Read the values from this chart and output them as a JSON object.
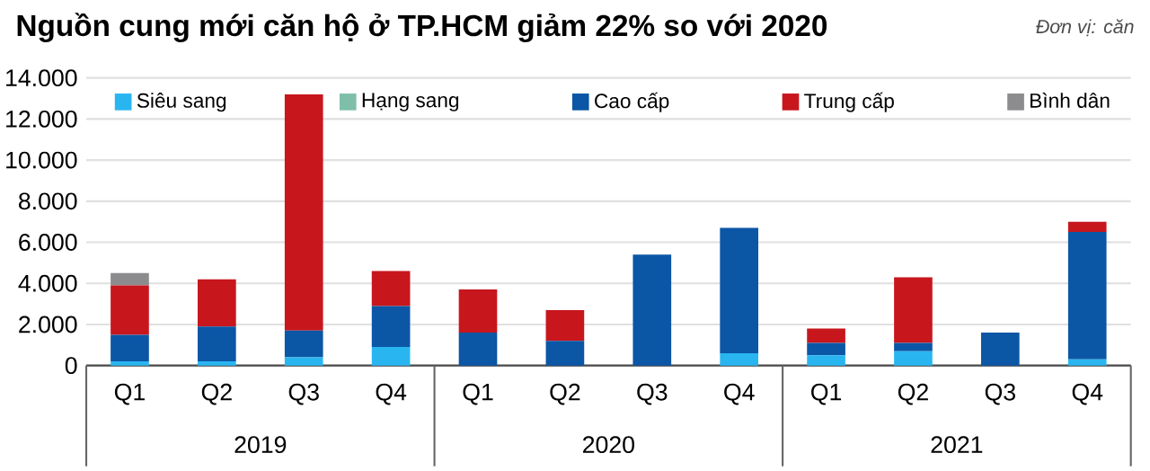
{
  "chart_data": {
    "type": "bar",
    "title": "Nguồn cung mới căn hộ ở TP.HCM giảm 22% so với 2020",
    "categories": [
      "Q1",
      "Q2",
      "Q3",
      "Q4",
      "Q1",
      "Q2",
      "Q3",
      "Q4",
      "Q1",
      "Q2",
      "Q3",
      "Q4"
    ],
    "stacked": true,
    "series": [
      {
        "name": "Siêu sang",
        "color": "#29b6f0",
        "values": [
          200,
          200,
          400,
          900,
          0,
          0,
          0,
          600,
          500,
          700,
          0,
          300
        ]
      },
      {
        "name": "Hạng sang",
        "color": "#7fbfaa",
        "values": [
          0,
          0,
          0,
          0,
          0,
          0,
          0,
          0,
          0,
          0,
          0,
          0
        ]
      },
      {
        "name": "Cao cấp",
        "color": "#0b56a5",
        "values": [
          1300,
          1700,
          1300,
          2000,
          1600,
          1200,
          5400,
          6100,
          600,
          400,
          1600,
          6200
        ]
      },
      {
        "name": "Trung cấp",
        "color": "#c8161d",
        "values": [
          2400,
          2300,
          11500,
          1700,
          2100,
          1500,
          0,
          0,
          700,
          3200,
          0,
          500
        ]
      },
      {
        "name": "Bình dân",
        "color": "#8c8c8e",
        "values": [
          600,
          0,
          0,
          0,
          0,
          0,
          0,
          0,
          0,
          0,
          0,
          0
        ]
      }
    ],
    "ylim": [
      0,
      14000
    ],
    "yticks": [
      0,
      {
        "value": 2000,
        "label": "2.000"
      },
      {
        "value": 4000,
        "label": "4.000"
      },
      {
        "value": 6000,
        "label": "6.000"
      },
      {
        "value": 8000,
        "label": "8.000"
      },
      {
        "value": 10000,
        "label": "10.000"
      },
      {
        "value": 12000,
        "label": "12.000"
      },
      {
        "value": 14000,
        "label": "14.000"
      }
    ],
    "grid": "y",
    "legend": "top",
    "annotations": [
      "Đơn vị: căn",
      "2019",
      "2020",
      "2021"
    ]
  }
}
